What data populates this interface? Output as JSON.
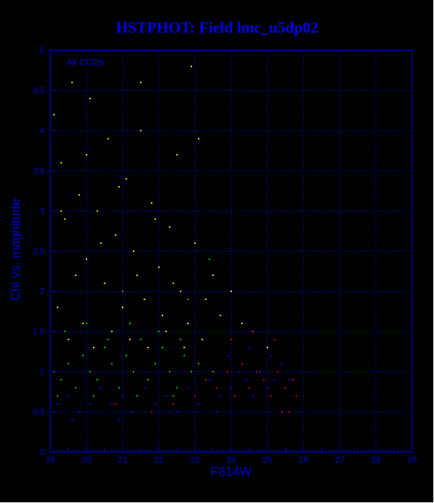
{
  "chart_data": {
    "type": "scatter",
    "title": "HSTPHOT: Field lmc_u5dp02",
    "xlabel": "F814W",
    "ylabel": "Chi vs. magnitude",
    "annotation": "All CCDs",
    "xlim": [
      19,
      29
    ],
    "ylim": [
      0,
      5
    ],
    "x_ticks": [
      "19",
      "20",
      "21",
      "22",
      "23",
      "24",
      "25",
      "26",
      "27",
      "28",
      "29"
    ],
    "y_ticks": [
      "0",
      "0.5",
      "1",
      "1.5",
      "2",
      "2.5",
      "3",
      "3.5",
      "4",
      "4.5",
      "5"
    ],
    "grid": true,
    "colors": {
      "background": "#000000",
      "axes": "#0000cc",
      "grid": "#0000ff",
      "title": "#0000ee"
    },
    "series": [
      {
        "color": "#ffff00",
        "points": [
          [
            19.1,
            4.2
          ],
          [
            19.3,
            3.6
          ],
          [
            19.4,
            2.9
          ],
          [
            19.6,
            4.6
          ],
          [
            19.8,
            3.2
          ],
          [
            20.0,
            2.4
          ],
          [
            20.1,
            4.4
          ],
          [
            20.3,
            3.0
          ],
          [
            20.5,
            2.1
          ],
          [
            20.6,
            3.9
          ],
          [
            20.8,
            2.7
          ],
          [
            21.0,
            1.8
          ],
          [
            21.1,
            3.4
          ],
          [
            21.3,
            2.5
          ],
          [
            21.5,
            4.0
          ],
          [
            21.6,
            1.9
          ],
          [
            21.8,
            3.1
          ],
          [
            22.0,
            2.3
          ],
          [
            22.1,
            1.7
          ],
          [
            22.3,
            2.8
          ],
          [
            22.5,
            3.7
          ],
          [
            22.6,
            2.0
          ],
          [
            22.8,
            1.6
          ],
          [
            23.0,
            2.6
          ],
          [
            23.1,
            3.9
          ],
          [
            23.3,
            1.9
          ],
          [
            23.5,
            2.2
          ],
          [
            23.7,
            1.7
          ],
          [
            24.0,
            2.0
          ],
          [
            24.3,
            1.6
          ],
          [
            19.2,
            1.8
          ],
          [
            19.5,
            1.4
          ],
          [
            19.9,
            1.6
          ],
          [
            20.2,
            1.3
          ],
          [
            20.7,
            1.5
          ],
          [
            21.2,
            1.4
          ],
          [
            21.7,
            1.3
          ],
          [
            22.2,
            1.5
          ],
          [
            22.7,
            1.3
          ],
          [
            23.2,
            1.4
          ],
          [
            19.7,
            2.2
          ],
          [
            20.4,
            2.6
          ],
          [
            21.4,
            2.2
          ],
          [
            22.4,
            2.1
          ],
          [
            20.9,
            3.3
          ],
          [
            21.9,
            2.9
          ],
          [
            19.3,
            3.0
          ],
          [
            20.0,
            3.7
          ],
          [
            21.5,
            4.6
          ],
          [
            22.9,
            4.8
          ],
          [
            24.6,
            1.5
          ],
          [
            25.0,
            1.3
          ]
        ]
      },
      {
        "color": "#00dd00",
        "points": [
          [
            19.1,
            1.0
          ],
          [
            19.3,
            0.9
          ],
          [
            19.5,
            1.1
          ],
          [
            19.7,
            0.8
          ],
          [
            19.9,
            1.2
          ],
          [
            20.1,
            1.0
          ],
          [
            20.3,
            0.9
          ],
          [
            20.5,
            1.3
          ],
          [
            20.7,
            1.1
          ],
          [
            20.9,
            0.8
          ],
          [
            21.1,
            1.2
          ],
          [
            21.3,
            1.0
          ],
          [
            21.5,
            1.4
          ],
          [
            21.7,
            0.9
          ],
          [
            21.9,
            1.1
          ],
          [
            22.1,
            1.3
          ],
          [
            22.3,
            1.0
          ],
          [
            22.5,
            0.8
          ],
          [
            22.7,
            1.2
          ],
          [
            22.9,
            1.0
          ],
          [
            23.1,
            1.1
          ],
          [
            23.3,
            0.9
          ],
          [
            23.5,
            1.0
          ],
          [
            19.4,
            1.5
          ],
          [
            20.0,
            1.6
          ],
          [
            20.6,
            1.4
          ],
          [
            21.2,
            1.6
          ],
          [
            22.0,
            1.5
          ],
          [
            22.6,
            1.4
          ],
          [
            19.2,
            0.7
          ],
          [
            20.2,
            0.7
          ],
          [
            21.4,
            0.7
          ],
          [
            22.4,
            0.7
          ],
          [
            21.0,
            2.0
          ],
          [
            22.8,
            1.9
          ],
          [
            23.4,
            2.4
          ]
        ]
      },
      {
        "color": "#0000ff",
        "points": [
          [
            19.2,
            0.6
          ],
          [
            19.5,
            0.7
          ],
          [
            19.8,
            0.5
          ],
          [
            20.1,
            0.6
          ],
          [
            20.4,
            0.8
          ],
          [
            20.7,
            0.6
          ],
          [
            21.0,
            0.7
          ],
          [
            21.3,
            0.5
          ],
          [
            21.6,
            0.8
          ],
          [
            21.9,
            0.6
          ],
          [
            22.2,
            0.7
          ],
          [
            22.5,
            0.5
          ],
          [
            22.8,
            0.8
          ],
          [
            23.1,
            0.6
          ],
          [
            23.4,
            0.9
          ],
          [
            23.7,
            0.7
          ],
          [
            24.0,
            0.8
          ],
          [
            24.2,
            1.0
          ],
          [
            24.4,
            0.9
          ],
          [
            24.6,
            0.7
          ],
          [
            24.8,
            1.0
          ],
          [
            25.0,
            0.8
          ],
          [
            25.2,
            0.9
          ],
          [
            25.4,
            1.1
          ],
          [
            25.6,
            0.9
          ],
          [
            23.9,
            1.2
          ],
          [
            24.5,
            1.3
          ],
          [
            25.1,
            1.2
          ],
          [
            19.6,
            0.4
          ],
          [
            20.9,
            0.4
          ],
          [
            22.3,
            0.5
          ],
          [
            23.6,
            0.5
          ]
        ]
      },
      {
        "color": "#dd0000",
        "points": [
          [
            23.0,
            0.7
          ],
          [
            23.3,
            0.9
          ],
          [
            23.6,
            0.8
          ],
          [
            23.9,
            1.0
          ],
          [
            24.1,
            0.7
          ],
          [
            24.3,
            1.1
          ],
          [
            24.5,
            0.8
          ],
          [
            24.7,
            1.0
          ],
          [
            24.9,
            0.9
          ],
          [
            25.1,
            0.7
          ],
          [
            25.3,
            1.0
          ],
          [
            25.5,
            0.8
          ],
          [
            25.7,
            0.9
          ],
          [
            25.8,
            0.7
          ],
          [
            24.0,
            1.4
          ],
          [
            24.6,
            1.5
          ],
          [
            25.2,
            1.4
          ],
          [
            25.4,
            0.5
          ],
          [
            25.6,
            0.5
          ],
          [
            22.4,
            0.6
          ],
          [
            21.8,
            0.5
          ],
          [
            20.8,
            0.6
          ]
        ]
      }
    ]
  }
}
